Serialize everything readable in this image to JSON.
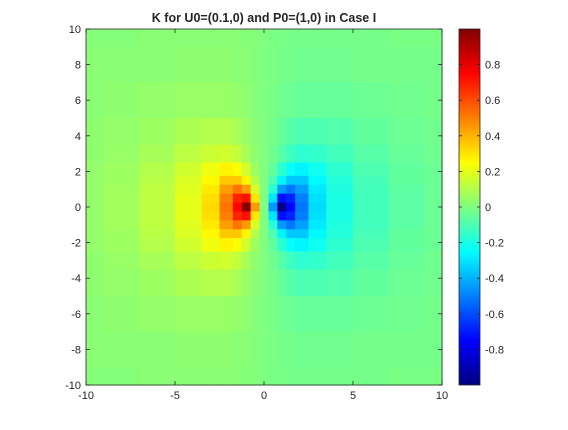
{
  "chart_data": {
    "type": "heatmap",
    "title": "K for U0=(0.1,0) and P0=(1,0) in Case I",
    "xlabel": "",
    "ylabel": "",
    "xlim": [
      -10,
      10
    ],
    "ylim": [
      -10,
      10
    ],
    "x_ticks": [
      "-10",
      "-5",
      "0",
      "5",
      "10"
    ],
    "y_ticks": [
      "10",
      "8",
      "6",
      "4",
      "2",
      "0",
      "-2",
      "-4",
      "-6",
      "-8",
      "-10"
    ],
    "grid": false,
    "colormap": "jet",
    "colorbar": {
      "range": [
        -1,
        1
      ],
      "tick_values": [
        0.8,
        0.6,
        0.4,
        0.2,
        0,
        -0.2,
        -0.4,
        -0.6,
        -0.8
      ],
      "tick_labels": [
        "0.8",
        "0.6",
        "0.4",
        "0.2",
        "0",
        "-0.2",
        "-0.4",
        "-0.6",
        "-0.8"
      ],
      "placement": "right"
    },
    "field": {
      "description_values": {
        "background": 0,
        "left_lobe_peak": 1,
        "left_lobe_center": [
          -1,
          0
        ],
        "right_lobe_peak": -1,
        "right_lobe_center": [
          1,
          0
        ]
      },
      "grid_x": [
        -10,
        -8,
        -6,
        -4,
        -3,
        -2,
        -1.5,
        -1,
        -0.5,
        0,
        0.5,
        1,
        1.5,
        2,
        3,
        4,
        6,
        8,
        10
      ],
      "grid_y": [
        10,
        8,
        6,
        4,
        3,
        2,
        1.5,
        1,
        0.5,
        0,
        -0.5,
        -1,
        -1.5,
        -2,
        -3,
        -4,
        -6,
        -8,
        -10
      ],
      "values_by_row_top_to_bottom": [
        [
          0.01,
          0.01,
          0.02,
          0.02,
          0.02,
          0.02,
          0.02,
          0.01,
          0.01,
          0,
          -0.01,
          -0.01,
          -0.02,
          -0.02,
          -0.02,
          -0.02,
          -0.02,
          -0.01,
          -0.01
        ],
        [
          0.02,
          0.02,
          0.02,
          0.03,
          0.03,
          0.03,
          0.02,
          0.02,
          0.01,
          0,
          -0.01,
          -0.02,
          -0.02,
          -0.03,
          -0.03,
          -0.03,
          -0.02,
          -0.02,
          -0.02
        ],
        [
          0.02,
          0.03,
          0.04,
          0.05,
          0.05,
          0.05,
          0.04,
          0.03,
          0.01,
          0,
          -0.01,
          -0.03,
          -0.04,
          -0.05,
          -0.05,
          -0.05,
          -0.04,
          -0.03,
          -0.02
        ],
        [
          0.03,
          0.04,
          0.06,
          0.09,
          0.1,
          0.1,
          0.08,
          0.05,
          0.02,
          0,
          -0.02,
          -0.05,
          -0.08,
          -0.1,
          -0.1,
          -0.09,
          -0.06,
          -0.04,
          -0.03
        ],
        [
          0.03,
          0.05,
          0.08,
          0.12,
          0.15,
          0.16,
          0.13,
          0.08,
          0.03,
          0,
          -0.03,
          -0.08,
          -0.13,
          -0.16,
          -0.15,
          -0.12,
          -0.08,
          -0.05,
          -0.03
        ],
        [
          0.04,
          0.06,
          0.1,
          0.16,
          0.22,
          0.27,
          0.24,
          0.16,
          0.06,
          0,
          -0.06,
          -0.16,
          -0.24,
          -0.27,
          -0.22,
          -0.16,
          -0.1,
          -0.06,
          -0.04
        ],
        [
          0.04,
          0.06,
          0.11,
          0.18,
          0.26,
          0.36,
          0.36,
          0.27,
          0.1,
          0,
          -0.1,
          -0.27,
          -0.36,
          -0.36,
          -0.26,
          -0.18,
          -0.11,
          -0.06,
          -0.04
        ],
        [
          0.04,
          0.07,
          0.12,
          0.19,
          0.29,
          0.44,
          0.52,
          0.45,
          0.17,
          0,
          -0.17,
          -0.45,
          -0.52,
          -0.44,
          -0.29,
          -0.19,
          -0.12,
          -0.07,
          -0.04
        ],
        [
          0.04,
          0.07,
          0.12,
          0.2,
          0.31,
          0.5,
          0.68,
          0.72,
          0.3,
          0,
          -0.3,
          -0.72,
          -0.68,
          -0.5,
          -0.31,
          -0.2,
          -0.12,
          -0.07,
          -0.04
        ],
        [
          0.04,
          0.07,
          0.12,
          0.2,
          0.32,
          0.52,
          0.74,
          0.98,
          0.45,
          0,
          -0.45,
          -0.98,
          -0.74,
          -0.52,
          -0.32,
          -0.2,
          -0.12,
          -0.07,
          -0.04
        ],
        [
          0.04,
          0.07,
          0.12,
          0.2,
          0.31,
          0.5,
          0.68,
          0.72,
          0.3,
          0,
          -0.3,
          -0.72,
          -0.68,
          -0.5,
          -0.31,
          -0.2,
          -0.12,
          -0.07,
          -0.04
        ],
        [
          0.04,
          0.07,
          0.12,
          0.19,
          0.29,
          0.44,
          0.52,
          0.45,
          0.17,
          0,
          -0.17,
          -0.45,
          -0.52,
          -0.44,
          -0.29,
          -0.19,
          -0.12,
          -0.07,
          -0.04
        ],
        [
          0.04,
          0.06,
          0.11,
          0.18,
          0.26,
          0.36,
          0.36,
          0.27,
          0.1,
          0,
          -0.1,
          -0.27,
          -0.36,
          -0.36,
          -0.26,
          -0.18,
          -0.11,
          -0.06,
          -0.04
        ],
        [
          0.04,
          0.06,
          0.1,
          0.16,
          0.22,
          0.27,
          0.24,
          0.16,
          0.06,
          0,
          -0.06,
          -0.16,
          -0.24,
          -0.27,
          -0.22,
          -0.16,
          -0.1,
          -0.06,
          -0.04
        ],
        [
          0.03,
          0.05,
          0.08,
          0.12,
          0.15,
          0.16,
          0.13,
          0.08,
          0.03,
          0,
          -0.03,
          -0.08,
          -0.13,
          -0.16,
          -0.15,
          -0.12,
          -0.08,
          -0.05,
          -0.03
        ],
        [
          0.03,
          0.04,
          0.06,
          0.09,
          0.1,
          0.1,
          0.08,
          0.05,
          0.02,
          0,
          -0.02,
          -0.05,
          -0.08,
          -0.1,
          -0.1,
          -0.09,
          -0.06,
          -0.04,
          -0.03
        ],
        [
          0.02,
          0.03,
          0.04,
          0.05,
          0.05,
          0.05,
          0.04,
          0.03,
          0.01,
          0,
          -0.01,
          -0.03,
          -0.04,
          -0.05,
          -0.05,
          -0.05,
          -0.04,
          -0.03,
          -0.02
        ],
        [
          0.02,
          0.02,
          0.02,
          0.03,
          0.03,
          0.03,
          0.02,
          0.02,
          0.01,
          0,
          -0.01,
          -0.02,
          -0.02,
          -0.03,
          -0.03,
          -0.03,
          -0.02,
          -0.02,
          -0.02
        ],
        [
          0.01,
          0.01,
          0.02,
          0.02,
          0.02,
          0.02,
          0.02,
          0.01,
          0.01,
          0,
          -0.01,
          -0.01,
          -0.02,
          -0.02,
          -0.02,
          -0.02,
          -0.02,
          -0.01,
          -0.01
        ]
      ]
    }
  }
}
